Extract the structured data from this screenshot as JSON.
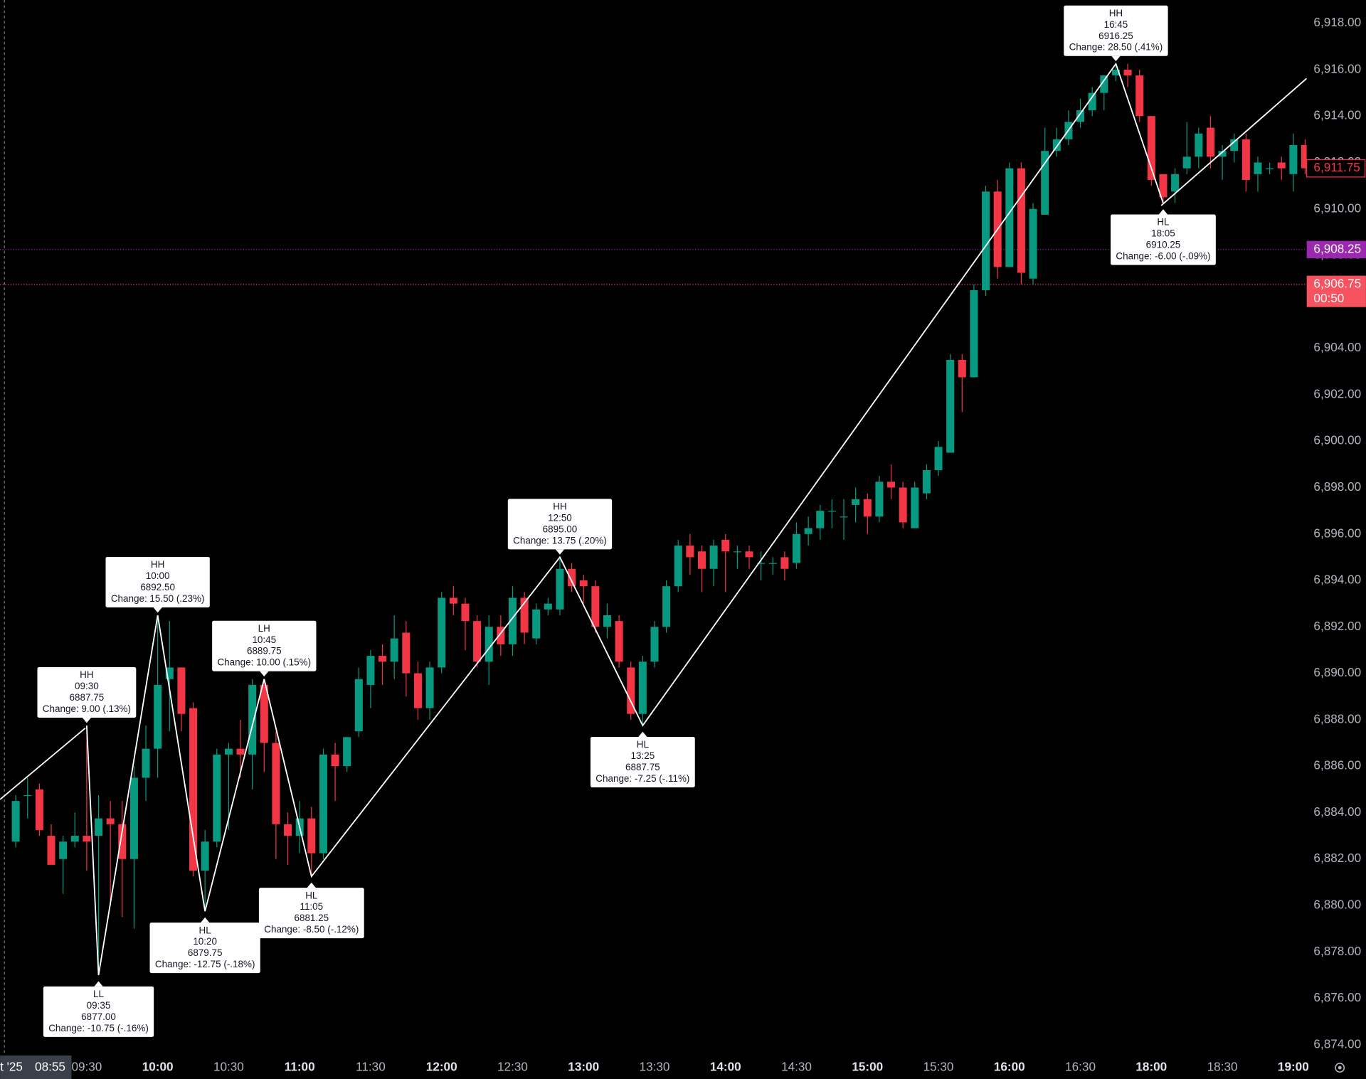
{
  "chart_data": {
    "type": "candlestick",
    "up_color": "#089981",
    "down_color": "#f23645",
    "zigzag_color": "#ffffff",
    "ylim": [
      6873.5,
      6919
    ],
    "yticks": [
      {
        "value": 6874,
        "label": "6,874.00"
      },
      {
        "value": 6876,
        "label": "6,876.00"
      },
      {
        "value": 6878,
        "label": "6,878.00"
      },
      {
        "value": 6880,
        "label": "6,880.00"
      },
      {
        "value": 6882,
        "label": "6,882.00"
      },
      {
        "value": 6884,
        "label": "6,884.00"
      },
      {
        "value": 6886,
        "label": "6,886.00"
      },
      {
        "value": 6888,
        "label": "6,888.00"
      },
      {
        "value": 6890,
        "label": "6,890.00"
      },
      {
        "value": 6892,
        "label": "6,892.00"
      },
      {
        "value": 6894,
        "label": "6,894.00"
      },
      {
        "value": 6896,
        "label": "6,896.00"
      },
      {
        "value": 6898,
        "label": "6,898.00"
      },
      {
        "value": 6900,
        "label": "6,900.00"
      },
      {
        "value": 6902,
        "label": "6,902.00"
      },
      {
        "value": 6904,
        "label": "6,904.00"
      },
      {
        "value": 6906,
        "label": "6,906.00"
      },
      {
        "value": 6908,
        "label": "6,908.00"
      },
      {
        "value": 6910,
        "label": "6,910.00"
      },
      {
        "value": 6912,
        "label": "6,912.00"
      },
      {
        "value": 6914,
        "label": "6,914.00"
      },
      {
        "value": 6916,
        "label": "6,916.00"
      },
      {
        "value": 6918,
        "label": "6,918.00"
      }
    ],
    "grid": false,
    "xticks": [
      "09:30",
      "10:00",
      "10:30",
      "11:00",
      "11:30",
      "12:00",
      "12:30",
      "13:00",
      "13:30",
      "14:00",
      "14:30",
      "15:00",
      "15:30",
      "16:00",
      "16:30",
      "18:00",
      "18:30",
      "19:00"
    ],
    "crosshair": {
      "date": "t '25",
      "time": "08:55"
    },
    "price_lines": [
      {
        "value": 6908.25,
        "label": "6,908.25",
        "color": "#9c27b0"
      },
      {
        "value": 6906.75,
        "label": "6,906.75",
        "countdown": "00:50",
        "color": "#f7525f"
      }
    ],
    "last_price": {
      "value": 6911.75,
      "label": "6,911.75",
      "color": "#f23645"
    },
    "pivots": [
      {
        "kind": "HH",
        "time": "09:30",
        "price": 6887.75,
        "price_label": "6887.75",
        "change": "Change: 9.00 (.13%)"
      },
      {
        "kind": "LL",
        "time": "09:35",
        "price": 6877.0,
        "price_label": "6877.00",
        "change": "Change: -10.75 (-.16%)"
      },
      {
        "kind": "HH",
        "time": "10:00",
        "price": 6892.5,
        "price_label": "6892.50",
        "change": "Change: 15.50 (.23%)"
      },
      {
        "kind": "HL",
        "time": "10:20",
        "price": 6879.75,
        "price_label": "6879.75",
        "change": "Change: -12.75 (-.18%)"
      },
      {
        "kind": "LH",
        "time": "10:45",
        "price": 6889.75,
        "price_label": "6889.75",
        "change": "Change: 10.00 (.15%)"
      },
      {
        "kind": "HL",
        "time": "11:05",
        "price": 6881.25,
        "price_label": "6881.25",
        "change": "Change: -8.50 (-.12%)"
      },
      {
        "kind": "HH",
        "time": "12:50",
        "price": 6895.0,
        "price_label": "6895.00",
        "change": "Change: 13.75 (.20%)"
      },
      {
        "kind": "HL",
        "time": "13:25",
        "price": 6887.75,
        "price_label": "6887.75",
        "change": "Change: -7.25 (-.11%)"
      },
      {
        "kind": "HH",
        "time": "16:45",
        "price": 6916.25,
        "price_label": "6916.25",
        "change": "Change: 28.50 (.41%)"
      },
      {
        "kind": "HL",
        "time": "18:05",
        "price": 6910.25,
        "price_label": "6910.25",
        "change": "Change: -6.00 (-.09%)"
      }
    ],
    "candles": [
      {
        "x": "09:00",
        "open": 6882.75,
        "high": 6884.75,
        "low": 6882.5,
        "close": 6884.5
      },
      {
        "x": "09:05",
        "open": 6884.75,
        "high": 6885.5,
        "low": 6883.75,
        "close": 6884.75
      },
      {
        "x": "09:10",
        "open": 6885.0,
        "high": 6885.25,
        "low": 6883.0,
        "close": 6883.25
      },
      {
        "x": "09:15",
        "open": 6883.0,
        "high": 6883.5,
        "low": 6881.75,
        "close": 6881.75
      },
      {
        "x": "09:20",
        "open": 6882.0,
        "high": 6883.0,
        "low": 6880.5,
        "close": 6882.75
      },
      {
        "x": "09:25",
        "open": 6882.75,
        "high": 6884.0,
        "low": 6882.5,
        "close": 6883.0
      },
      {
        "x": "09:30",
        "open": 6883.0,
        "high": 6887.75,
        "low": 6881.5,
        "close": 6882.75
      },
      {
        "x": "09:35",
        "open": 6883.0,
        "high": 6884.75,
        "low": 6877.0,
        "close": 6883.75
      },
      {
        "x": "09:40",
        "open": 6883.75,
        "high": 6884.5,
        "low": 6880.0,
        "close": 6883.5
      },
      {
        "x": "09:45",
        "open": 6883.5,
        "high": 6884.5,
        "low": 6879.5,
        "close": 6882.0
      },
      {
        "x": "09:50",
        "open": 6882.0,
        "high": 6886.0,
        "low": 6879.0,
        "close": 6885.5
      },
      {
        "x": "09:55",
        "open": 6885.5,
        "high": 6887.75,
        "low": 6884.5,
        "close": 6886.75
      },
      {
        "x": "10:00",
        "open": 6886.75,
        "high": 6892.5,
        "low": 6885.5,
        "close": 6889.5
      },
      {
        "x": "10:05",
        "open": 6889.75,
        "high": 6892.25,
        "low": 6887.5,
        "close": 6890.25
      },
      {
        "x": "10:10",
        "open": 6890.25,
        "high": 6890.25,
        "low": 6887.5,
        "close": 6888.25
      },
      {
        "x": "10:15",
        "open": 6888.5,
        "high": 6888.75,
        "low": 6881.25,
        "close": 6881.5
      },
      {
        "x": "10:20",
        "open": 6881.5,
        "high": 6883.25,
        "low": 6879.75,
        "close": 6882.75
      },
      {
        "x": "10:25",
        "open": 6882.75,
        "high": 6886.75,
        "low": 6882.5,
        "close": 6886.5
      },
      {
        "x": "10:30",
        "open": 6886.5,
        "high": 6887.0,
        "low": 6883.25,
        "close": 6886.75
      },
      {
        "x": "10:35",
        "open": 6886.75,
        "high": 6888.0,
        "low": 6885.5,
        "close": 6886.5
      },
      {
        "x": "10:40",
        "open": 6886.5,
        "high": 6889.75,
        "low": 6885.0,
        "close": 6889.5
      },
      {
        "x": "10:45",
        "open": 6889.5,
        "high": 6889.75,
        "low": 6885.75,
        "close": 6887.0
      },
      {
        "x": "10:50",
        "open": 6887.0,
        "high": 6887.5,
        "low": 6882.0,
        "close": 6883.5
      },
      {
        "x": "10:55",
        "open": 6883.5,
        "high": 6884.0,
        "low": 6881.75,
        "close": 6883.0
      },
      {
        "x": "11:00",
        "open": 6883.0,
        "high": 6884.5,
        "low": 6882.25,
        "close": 6883.75
      },
      {
        "x": "11:05",
        "open": 6883.75,
        "high": 6884.25,
        "low": 6881.25,
        "close": 6882.25
      },
      {
        "x": "11:10",
        "open": 6882.25,
        "high": 6886.75,
        "low": 6882.0,
        "close": 6886.5
      },
      {
        "x": "11:15",
        "open": 6886.5,
        "high": 6887.0,
        "low": 6884.5,
        "close": 6886.0
      },
      {
        "x": "11:20",
        "open": 6886.0,
        "high": 6887.25,
        "low": 6885.75,
        "close": 6887.25
      },
      {
        "x": "11:25",
        "open": 6887.5,
        "high": 6890.25,
        "low": 6887.25,
        "close": 6889.75
      },
      {
        "x": "11:30",
        "open": 6889.5,
        "high": 6891.0,
        "low": 6888.5,
        "close": 6890.75
      },
      {
        "x": "11:35",
        "open": 6890.75,
        "high": 6891.25,
        "low": 6889.5,
        "close": 6890.5
      },
      {
        "x": "11:40",
        "open": 6890.5,
        "high": 6892.5,
        "low": 6889.75,
        "close": 6891.5
      },
      {
        "x": "11:45",
        "open": 6891.75,
        "high": 6892.25,
        "low": 6889.0,
        "close": 6890.0
      },
      {
        "x": "11:50",
        "open": 6890.0,
        "high": 6890.5,
        "low": 6888.0,
        "close": 6888.5
      },
      {
        "x": "11:55",
        "open": 6888.5,
        "high": 6890.5,
        "low": 6888.0,
        "close": 6890.25
      },
      {
        "x": "12:00",
        "open": 6890.25,
        "high": 6893.5,
        "low": 6890.0,
        "close": 6893.25
      },
      {
        "x": "12:05",
        "open": 6893.25,
        "high": 6893.75,
        "low": 6892.5,
        "close": 6893.0
      },
      {
        "x": "12:10",
        "open": 6893.0,
        "high": 6893.25,
        "low": 6891.0,
        "close": 6892.25
      },
      {
        "x": "12:15",
        "open": 6892.25,
        "high": 6892.5,
        "low": 6890.25,
        "close": 6890.5
      },
      {
        "x": "12:20",
        "open": 6890.5,
        "high": 6892.5,
        "low": 6889.5,
        "close": 6892.0
      },
      {
        "x": "12:25",
        "open": 6892.0,
        "high": 6892.5,
        "low": 6890.75,
        "close": 6891.25
      },
      {
        "x": "12:30",
        "open": 6891.25,
        "high": 6893.75,
        "low": 6890.75,
        "close": 6893.25
      },
      {
        "x": "12:35",
        "open": 6893.25,
        "high": 6893.5,
        "low": 6891.25,
        "close": 6891.75
      },
      {
        "x": "12:40",
        "open": 6891.5,
        "high": 6893.0,
        "low": 6891.25,
        "close": 6892.75
      },
      {
        "x": "12:45",
        "open": 6892.75,
        "high": 6893.25,
        "low": 6892.5,
        "close": 6893.0
      },
      {
        "x": "12:50",
        "open": 6892.75,
        "high": 6895.0,
        "low": 6892.5,
        "close": 6894.5
      },
      {
        "x": "12:55",
        "open": 6894.5,
        "high": 6894.75,
        "low": 6893.5,
        "close": 6893.75
      },
      {
        "x": "13:00",
        "open": 6894.0,
        "high": 6894.25,
        "low": 6893.0,
        "close": 6893.75
      },
      {
        "x": "13:05",
        "open": 6893.75,
        "high": 6894.0,
        "low": 6891.75,
        "close": 6892.0
      },
      {
        "x": "13:10",
        "open": 6892.0,
        "high": 6893.0,
        "low": 6891.5,
        "close": 6892.5
      },
      {
        "x": "13:15",
        "open": 6892.25,
        "high": 6892.5,
        "low": 6890.25,
        "close": 6890.5
      },
      {
        "x": "13:20",
        "open": 6890.25,
        "high": 6890.5,
        "low": 6888.0,
        "close": 6888.25
      },
      {
        "x": "13:25",
        "open": 6888.25,
        "high": 6890.75,
        "low": 6887.75,
        "close": 6890.5
      },
      {
        "x": "13:30",
        "open": 6890.5,
        "high": 6892.25,
        "low": 6890.25,
        "close": 6892.0
      },
      {
        "x": "13:35",
        "open": 6892.0,
        "high": 6894.0,
        "low": 6891.75,
        "close": 6893.75
      },
      {
        "x": "13:40",
        "open": 6893.75,
        "high": 6895.75,
        "low": 6893.5,
        "close": 6895.5
      },
      {
        "x": "13:45",
        "open": 6895.5,
        "high": 6896.0,
        "low": 6894.25,
        "close": 6895.0
      },
      {
        "x": "13:50",
        "open": 6895.25,
        "high": 6895.5,
        "low": 6893.5,
        "close": 6894.5
      },
      {
        "x": "13:55",
        "open": 6894.5,
        "high": 6895.75,
        "low": 6893.75,
        "close": 6895.5
      },
      {
        "x": "14:00",
        "open": 6895.75,
        "high": 6896.0,
        "low": 6893.5,
        "close": 6895.25
      },
      {
        "x": "14:05",
        "open": 6895.25,
        "high": 6895.5,
        "low": 6894.5,
        "close": 6895.25
      },
      {
        "x": "14:10",
        "open": 6895.25,
        "high": 6895.5,
        "low": 6894.5,
        "close": 6895.0
      },
      {
        "x": "14:15",
        "open": 6894.75,
        "high": 6895.25,
        "low": 6894.0,
        "close": 6894.75
      },
      {
        "x": "14:20",
        "open": 6894.75,
        "high": 6895.0,
        "low": 6894.25,
        "close": 6894.75
      },
      {
        "x": "14:25",
        "open": 6895.0,
        "high": 6895.25,
        "low": 6894.0,
        "close": 6894.5
      },
      {
        "x": "14:30",
        "open": 6894.75,
        "high": 6896.5,
        "low": 6894.5,
        "close": 6896.0
      },
      {
        "x": "14:35",
        "open": 6896.0,
        "high": 6896.75,
        "low": 6895.5,
        "close": 6896.25
      },
      {
        "x": "14:40",
        "open": 6896.25,
        "high": 6897.25,
        "low": 6895.75,
        "close": 6897.0
      },
      {
        "x": "14:45",
        "open": 6897.0,
        "high": 6897.5,
        "low": 6896.25,
        "close": 6897.0
      },
      {
        "x": "14:50",
        "open": 6896.75,
        "high": 6897.5,
        "low": 6895.75,
        "close": 6896.75
      },
      {
        "x": "14:55",
        "open": 6897.25,
        "high": 6898.0,
        "low": 6896.5,
        "close": 6897.5
      },
      {
        "x": "15:00",
        "open": 6897.5,
        "high": 6897.75,
        "low": 6896.0,
        "close": 6896.75
      },
      {
        "x": "15:05",
        "open": 6896.75,
        "high": 6898.5,
        "low": 6896.5,
        "close": 6898.25
      },
      {
        "x": "15:10",
        "open": 6898.25,
        "high": 6899.0,
        "low": 6897.5,
        "close": 6898.0
      },
      {
        "x": "15:15",
        "open": 6898.0,
        "high": 6898.25,
        "low": 6896.25,
        "close": 6896.5
      },
      {
        "x": "15:20",
        "open": 6896.25,
        "high": 6898.25,
        "low": 6896.25,
        "close": 6898.0
      },
      {
        "x": "15:25",
        "open": 6897.75,
        "high": 6899.0,
        "low": 6897.5,
        "close": 6898.75
      },
      {
        "x": "15:30",
        "open": 6898.75,
        "high": 6900.0,
        "low": 6898.5,
        "close": 6899.75
      },
      {
        "x": "15:35",
        "open": 6899.5,
        "high": 6903.75,
        "low": 6899.5,
        "close": 6903.5
      },
      {
        "x": "15:40",
        "open": 6903.5,
        "high": 6903.75,
        "low": 6901.25,
        "close": 6902.75
      },
      {
        "x": "15:45",
        "open": 6902.75,
        "high": 6906.75,
        "low": 6902.75,
        "close": 6906.5
      },
      {
        "x": "15:50",
        "open": 6906.5,
        "high": 6911.0,
        "low": 6906.25,
        "close": 6910.75
      },
      {
        "x": "15:55",
        "open": 6910.75,
        "high": 6911.25,
        "low": 6907.0,
        "close": 6907.5
      },
      {
        "x": "16:00",
        "open": 6907.5,
        "high": 6912.0,
        "low": 6907.5,
        "close": 6911.75
      },
      {
        "x": "16:05",
        "open": 6911.75,
        "high": 6912.0,
        "low": 6906.75,
        "close": 6907.25
      },
      {
        "x": "16:10",
        "open": 6907.0,
        "high": 6910.25,
        "low": 6906.75,
        "close": 6910.0
      },
      {
        "x": "16:15",
        "open": 6909.75,
        "high": 6913.5,
        "low": 6909.75,
        "close": 6912.5
      },
      {
        "x": "16:20",
        "open": 6912.5,
        "high": 6913.5,
        "low": 6912.25,
        "close": 6913.0
      },
      {
        "x": "16:25",
        "open": 6913.0,
        "high": 6914.25,
        "low": 6912.75,
        "close": 6913.75
      },
      {
        "x": "16:30",
        "open": 6913.75,
        "high": 6914.75,
        "low": 6913.5,
        "close": 6914.25
      },
      {
        "x": "16:35",
        "open": 6914.25,
        "high": 6915.25,
        "low": 6914.0,
        "close": 6915.0
      },
      {
        "x": "16:40",
        "open": 6915.0,
        "high": 6915.75,
        "low": 6914.25,
        "close": 6915.75
      },
      {
        "x": "16:45",
        "open": 6915.75,
        "high": 6916.25,
        "low": 6915.5,
        "close": 6916.0
      },
      {
        "x": "16:50",
        "open": 6916.0,
        "high": 6916.25,
        "low": 6915.25,
        "close": 6915.75
      },
      {
        "x": "16:55",
        "open": 6915.75,
        "high": 6916.0,
        "low": 6913.75,
        "close": 6914.0
      },
      {
        "x": "18:00",
        "open": 6914.0,
        "high": 6914.0,
        "low": 6911.0,
        "close": 6911.25
      },
      {
        "x": "18:05",
        "open": 6911.5,
        "high": 6911.5,
        "low": 6910.25,
        "close": 6910.5
      },
      {
        "x": "18:10",
        "open": 6910.75,
        "high": 6911.75,
        "low": 6910.25,
        "close": 6911.5
      },
      {
        "x": "18:15",
        "open": 6911.75,
        "high": 6913.75,
        "low": 6911.5,
        "close": 6912.25
      },
      {
        "x": "18:20",
        "open": 6912.25,
        "high": 6913.5,
        "low": 6911.75,
        "close": 6913.25
      },
      {
        "x": "18:25",
        "open": 6913.5,
        "high": 6914.0,
        "low": 6911.75,
        "close": 6912.25
      },
      {
        "x": "18:30",
        "open": 6912.25,
        "high": 6912.75,
        "low": 6911.25,
        "close": 6912.5
      },
      {
        "x": "18:35",
        "open": 6912.5,
        "high": 6913.25,
        "low": 6912.0,
        "close": 6913.0
      },
      {
        "x": "18:40",
        "open": 6913.0,
        "high": 6913.25,
        "low": 6910.75,
        "close": 6911.25
      },
      {
        "x": "18:45",
        "open": 6911.5,
        "high": 6912.25,
        "low": 6910.75,
        "close": 6912.0
      },
      {
        "x": "18:50",
        "open": 6911.75,
        "high": 6912.0,
        "low": 6911.5,
        "close": 6911.75
      },
      {
        "x": "18:55",
        "open": 6912.0,
        "high": 6912.25,
        "low": 6911.25,
        "close": 6911.75
      },
      {
        "x": "19:00",
        "open": 6911.5,
        "high": 6913.25,
        "low": 6910.75,
        "close": 6912.75
      },
      {
        "x": "19:05",
        "open": 6912.75,
        "high": 6913.0,
        "low": 6911.5,
        "close": 6911.75
      }
    ]
  }
}
